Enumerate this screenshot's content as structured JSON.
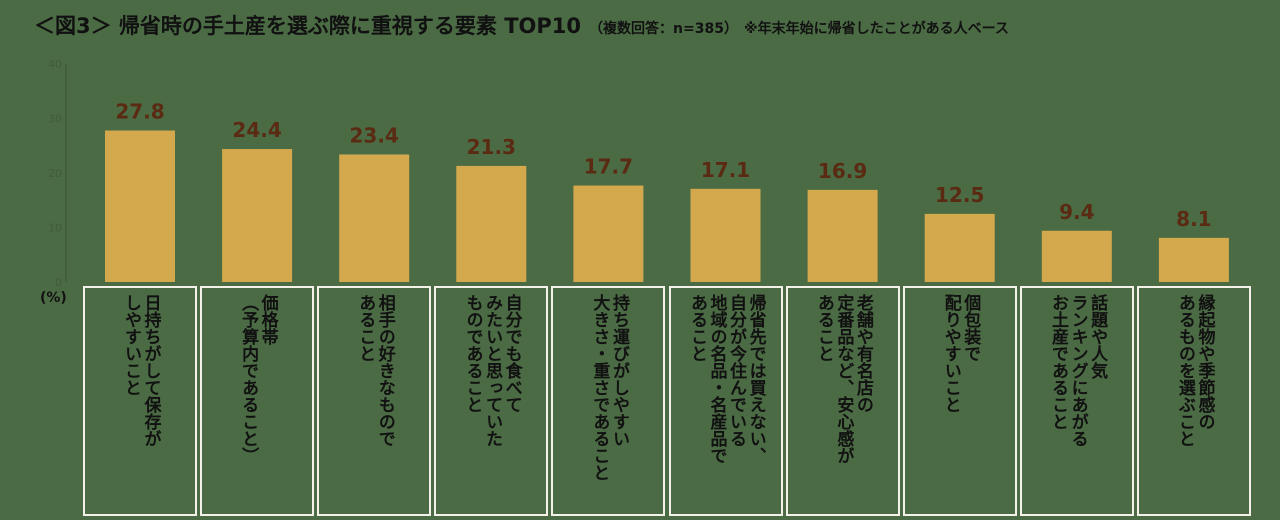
{
  "title": {
    "main": "＜図3＞ 帰省時の手土産を選ぶ際に重視する要素 TOP10",
    "sub": "（複数回答：n=385）",
    "note": "※年末年始に帰省したことがある人ベース"
  },
  "colors": {
    "bar": "#d4a84c",
    "value_label": "#5a2a12",
    "background": "#4b6b44"
  },
  "chart_data": {
    "type": "bar",
    "title": "＜図3＞ 帰省時の手土産を選ぶ際に重視する要素 TOP10",
    "ylabel": "(%)",
    "ylim": [
      0,
      40
    ],
    "yticks": [
      "0",
      "10",
      "20",
      "30",
      "40"
    ],
    "categories": [
      "日持ちがして保存が\nしやすいこと",
      "価格帯\n（予算内であること）",
      "相手の好きなもので\nあること",
      "自分でも食べて\nみたいと思っていた\nものであること",
      "持ち運びがしやすい\n大きさ・重さであること",
      "帰省先では買えない、\n自分が今住んでいる\n地域の名品・名産品で\nあること",
      "老舗や有名店の\n定番品など、安心感が\nあること",
      "個包装で\n配りやすいこと",
      "話題や人気\nランキングにあがる\nお土産であること",
      "縁起物や季節感の\nあるものを選ぶこと"
    ],
    "values": [
      27.8,
      24.4,
      23.4,
      21.3,
      17.7,
      17.1,
      16.9,
      12.5,
      9.4,
      8.1
    ],
    "value_labels": [
      "27.8",
      "24.4",
      "23.4",
      "21.3",
      "17.7",
      "17.1",
      "16.9",
      "12.5",
      "9.4",
      "8.1"
    ]
  }
}
